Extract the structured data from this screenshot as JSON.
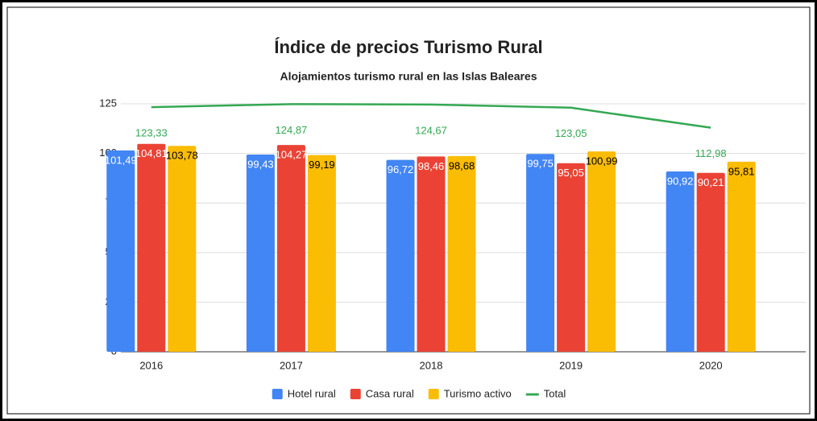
{
  "chart_data": {
    "type": "bar",
    "title": "Índice de precios Turismo Rural",
    "subtitle": "Alojamientos turismo rural en las Islas Baleares",
    "categories": [
      "2016",
      "2017",
      "2018",
      "2019",
      "2020"
    ],
    "series": [
      {
        "name": "Hotel rural",
        "type": "bar",
        "color": "#4285f4",
        "label_color": "#ffffff",
        "values": [
          101.49,
          99.43,
          96.72,
          99.75,
          90.92
        ],
        "value_labels": [
          "101,49",
          "99,43",
          "96,72",
          "99,75",
          "90,92"
        ]
      },
      {
        "name": "Casa rural",
        "type": "bar",
        "color": "#ea4335",
        "label_color": "#ffffff",
        "values": [
          104.81,
          104.27,
          98.46,
          95.05,
          90.21
        ],
        "value_labels": [
          "104,81",
          "104,27",
          "98,46",
          "95,05",
          "90,21"
        ]
      },
      {
        "name": "Turismo activo",
        "type": "bar",
        "color": "#fbbc04",
        "label_color": "#000000",
        "values": [
          103.78,
          99.19,
          98.68,
          100.99,
          95.81
        ],
        "value_labels": [
          "103,78",
          "99,19",
          "98,68",
          "100,99",
          "95,81"
        ]
      },
      {
        "name": "Total",
        "type": "line",
        "color": "#34a853",
        "label_color": "#34a853",
        "values": [
          123.33,
          124.87,
          124.67,
          123.05,
          112.98
        ],
        "value_labels": [
          "123,33",
          "124,87",
          "124,67",
          "123,05",
          "112,98"
        ]
      }
    ],
    "ylim": [
      0,
      125
    ],
    "yticks": [
      0,
      25,
      50,
      75,
      100,
      125
    ],
    "grid": true,
    "legend": "bottom"
  }
}
